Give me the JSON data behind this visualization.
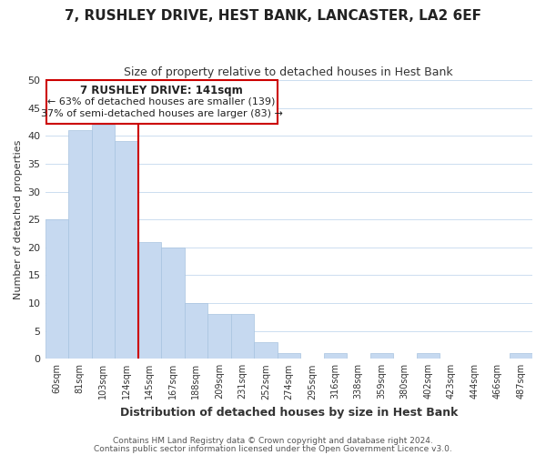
{
  "title": "7, RUSHLEY DRIVE, HEST BANK, LANCASTER, LA2 6EF",
  "subtitle": "Size of property relative to detached houses in Hest Bank",
  "xlabel": "Distribution of detached houses by size in Hest Bank",
  "ylabel": "Number of detached properties",
  "bar_color": "#c6d9f0",
  "bar_edge_color": "#a8c4e0",
  "bin_labels": [
    "60sqm",
    "81sqm",
    "103sqm",
    "124sqm",
    "145sqm",
    "167sqm",
    "188sqm",
    "209sqm",
    "231sqm",
    "252sqm",
    "274sqm",
    "295sqm",
    "316sqm",
    "338sqm",
    "359sqm",
    "380sqm",
    "402sqm",
    "423sqm",
    "444sqm",
    "466sqm",
    "487sqm"
  ],
  "bar_heights": [
    25,
    41,
    42,
    39,
    21,
    20,
    10,
    8,
    8,
    3,
    1,
    0,
    1,
    0,
    1,
    0,
    1,
    0,
    0,
    0,
    1
  ],
  "vline_color": "#cc0000",
  "annotation_title": "7 RUSHLEY DRIVE: 141sqm",
  "annotation_line1": "← 63% of detached houses are smaller (139)",
  "annotation_line2": "37% of semi-detached houses are larger (83) →",
  "annotation_box_color": "#ffffff",
  "annotation_box_edge": "#cc0000",
  "ylim": [
    0,
    50
  ],
  "yticks": [
    0,
    5,
    10,
    15,
    20,
    25,
    30,
    35,
    40,
    45,
    50
  ],
  "footer1": "Contains HM Land Registry data © Crown copyright and database right 2024.",
  "footer2": "Contains public sector information licensed under the Open Government Licence v3.0.",
  "background_color": "#ffffff",
  "grid_color": "#ccddf0"
}
